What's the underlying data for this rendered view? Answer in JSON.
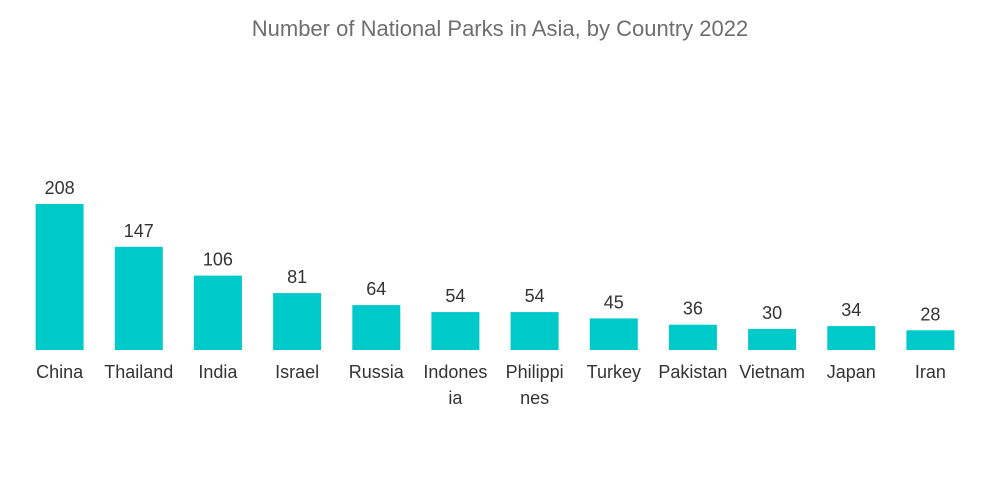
{
  "chart_data": {
    "type": "bar",
    "title": "Number of National Parks in Asia, by Country 2022",
    "xlabel": "",
    "ylabel": "",
    "ylim": [
      0,
      208
    ],
    "bar_color": "#00c9c9",
    "categories": [
      "China",
      "Thailand",
      "India",
      "Israel",
      "Russia",
      "Indonesia",
      "Philippines",
      "Turkey",
      "Pakistan",
      "Vietnam",
      "Japan",
      "Iran"
    ],
    "category_label_lines": [
      [
        "China"
      ],
      [
        "Thailand"
      ],
      [
        "India"
      ],
      [
        "Israel"
      ],
      [
        "Russia"
      ],
      [
        "Indones",
        "ia"
      ],
      [
        "Philippi",
        "nes"
      ],
      [
        "Turkey"
      ],
      [
        "Pakistan"
      ],
      [
        "Vietnam"
      ],
      [
        "Japan"
      ],
      [
        "Iran"
      ]
    ],
    "values": [
      208,
      147,
      106,
      81,
      64,
      54,
      54,
      45,
      36,
      30,
      34,
      28
    ]
  }
}
